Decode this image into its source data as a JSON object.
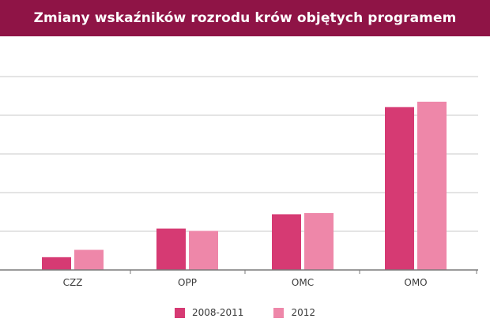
{
  "chart_data": {
    "type": "bar",
    "title": "Zmiany wskaźników rozrodu krów objętych programem",
    "categories": [
      "CZZ",
      "OPP",
      "OMC",
      "OMO"
    ],
    "series": [
      {
        "name": "2008-2011",
        "color": "#d63a73",
        "values": [
          0.33,
          1.07,
          1.44,
          4.21
        ]
      },
      {
        "name": "2012",
        "color": "#ee87a9",
        "values": [
          0.52,
          1.01,
          1.47,
          4.35
        ]
      }
    ],
    "ylim": [
      0,
      5
    ],
    "yticks": [
      0,
      1,
      2,
      3,
      4,
      5
    ],
    "y_tick_labels_shown": false,
    "grid": true,
    "legend_position": "bottom"
  },
  "colors": {
    "title_bar": "#8f1446",
    "title_text": "#ffffff",
    "grid": "#c9c9c9",
    "baseline": "#7a7a7a"
  }
}
